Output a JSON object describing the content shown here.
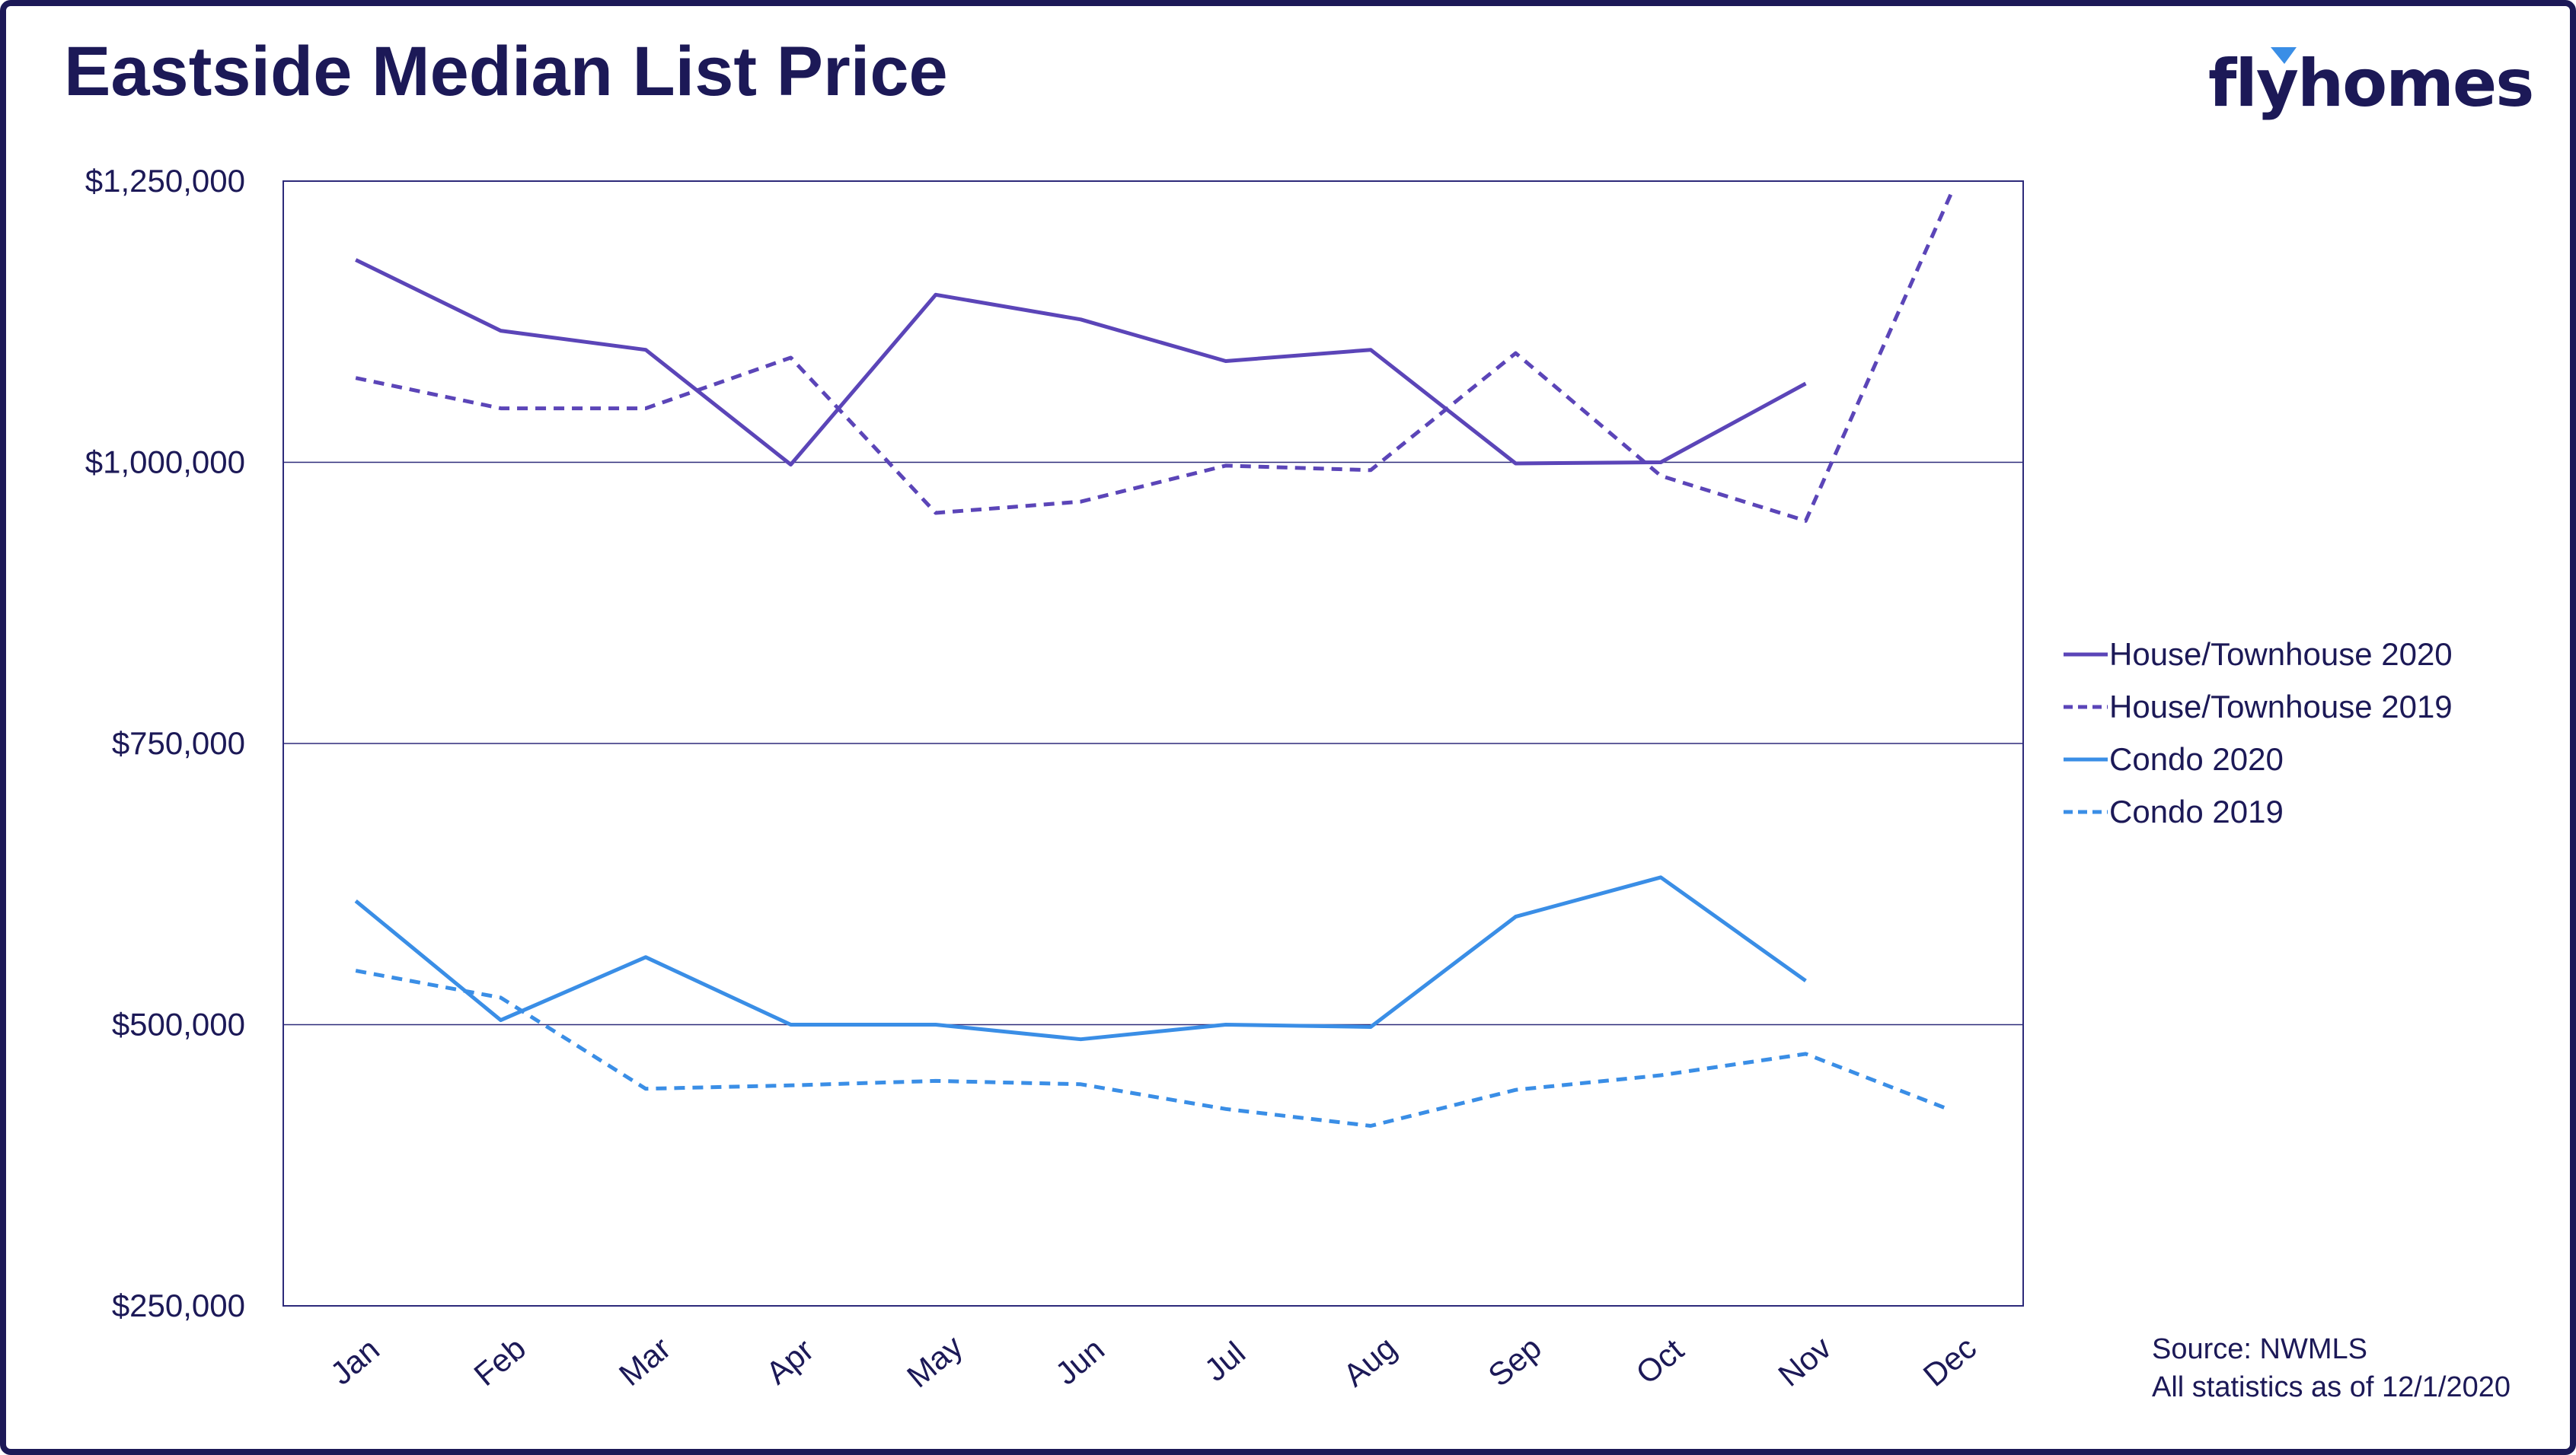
{
  "title": "Eastside Median List Price",
  "brand": "flyhomes",
  "source_lines": [
    "Source: NWMLS",
    "All statistics as of 12/1/2020"
  ],
  "colors": {
    "text": "#1c1957",
    "frame": "#1c1957",
    "gridline": "#2d2a7a",
    "house": "#5b45b8",
    "condo": "#3a8ee6",
    "logo_accent": "#3a8ee6"
  },
  "chart_data": {
    "type": "line",
    "title": "Eastside Median List Price",
    "xlabel": "",
    "ylabel": "",
    "categories": [
      "Jan",
      "Feb",
      "Mar",
      "Apr",
      "May",
      "Jun",
      "Jul",
      "Aug",
      "Sep",
      "Oct",
      "Nov",
      "Dec"
    ],
    "ylim": [
      250000,
      1250000
    ],
    "yticks": [
      250000,
      500000,
      750000,
      1000000,
      1250000
    ],
    "ytick_labels": [
      "$250,000",
      "$500,000",
      "$750,000",
      "$1,000,000",
      "$1,250,000"
    ],
    "grid": "horizontal",
    "legend_position": "right",
    "series": [
      {
        "name": "House/Townhouse 2020",
        "style": "solid",
        "color": "#5b45b8",
        "values": [
          1180000,
          1117000,
          1100000,
          998000,
          1149000,
          1127000,
          1090000,
          1100000,
          999000,
          1000000,
          1070000,
          null
        ]
      },
      {
        "name": "House/Townhouse 2019",
        "style": "dashed",
        "color": "#5b45b8",
        "values": [
          1075000,
          1048000,
          1048000,
          1093000,
          955000,
          965000,
          997000,
          993000,
          1097000,
          988000,
          948000,
          1238000
        ]
      },
      {
        "name": "Condo 2020",
        "style": "solid",
        "color": "#3a8ee6",
        "values": [
          610000,
          504000,
          560000,
          500000,
          500000,
          487000,
          500000,
          498000,
          596000,
          631000,
          539000,
          null
        ]
      },
      {
        "name": "Condo 2019",
        "style": "dashed",
        "color": "#3a8ee6",
        "values": [
          548000,
          524000,
          443000,
          446000,
          450000,
          447000,
          425000,
          410000,
          442000,
          455000,
          474000,
          424000
        ]
      }
    ]
  }
}
